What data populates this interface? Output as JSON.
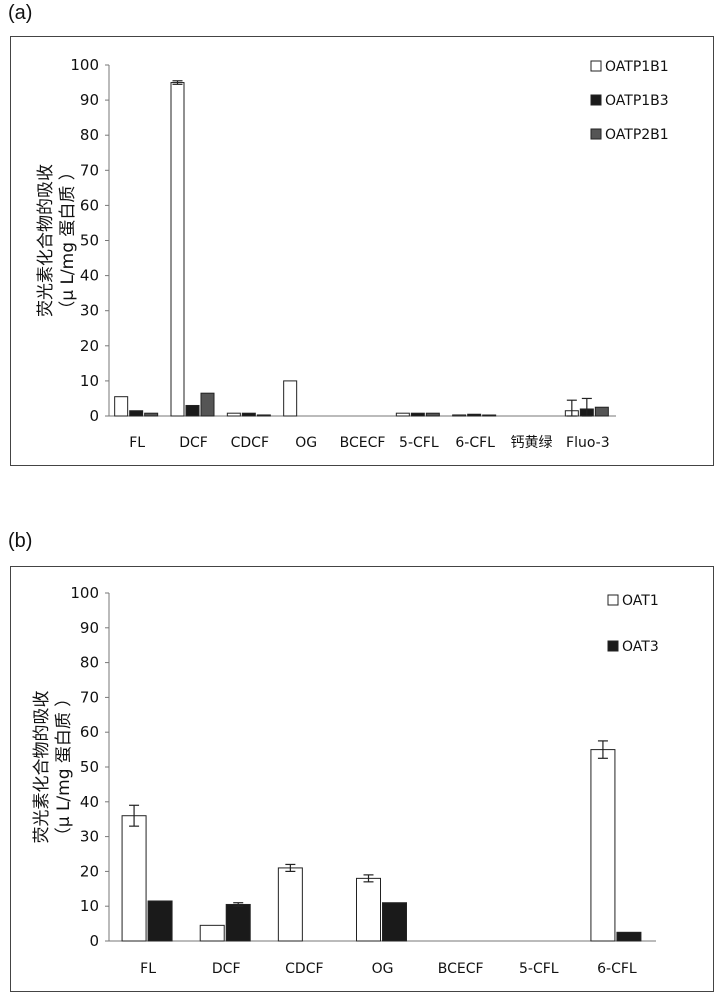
{
  "panels": {
    "a": {
      "label": "(a)"
    },
    "b": {
      "label": "(b)"
    }
  },
  "chart_data": [
    {
      "type": "bar",
      "id": "a",
      "ylabel_line1": "荧光素化合物的吸收",
      "ylabel_line2": "（μ L/mg 蛋白质 ）",
      "ylim": [
        0,
        100
      ],
      "yticks": [
        "0",
        "10",
        "20",
        "30",
        "40",
        "50",
        "60",
        "70",
        "80",
        "90",
        "100"
      ],
      "categories": [
        "FL",
        "DCF",
        "CDCF",
        "OG",
        "BCECF",
        "5-CFL",
        "6-CFL",
        "钙黄绿",
        "Fluo-3"
      ],
      "legend_position": "top-right",
      "grid": false,
      "series": [
        {
          "name": "OATP1B1",
          "fill": "#ffffff",
          "values": [
            5.5,
            95,
            0.8,
            10,
            0,
            0.8,
            0.3,
            0,
            1.5
          ],
          "errors": [
            0,
            0.5,
            0,
            0,
            0,
            0,
            0,
            0,
            3
          ]
        },
        {
          "name": "OATP1B3",
          "fill": "#1a1a1a",
          "values": [
            1.5,
            3,
            0.8,
            0,
            0,
            0.8,
            0.5,
            0,
            2
          ],
          "errors": [
            0,
            0,
            0,
            0,
            0,
            0,
            0,
            0,
            3
          ]
        },
        {
          "name": "OATP2B1",
          "fill": "#555555",
          "values": [
            0.8,
            6.5,
            0.3,
            0,
            0,
            0.8,
            0.2,
            0,
            2.5
          ],
          "errors": [
            0,
            0,
            0,
            0,
            0,
            0,
            0,
            0,
            0
          ]
        }
      ]
    },
    {
      "type": "bar",
      "id": "b",
      "ylabel_line1": "荧光素化合物的吸收",
      "ylabel_line2": "（μ L/mg 蛋白质 ）",
      "ylim": [
        0,
        100
      ],
      "yticks": [
        "0",
        "10",
        "20",
        "30",
        "40",
        "50",
        "60",
        "70",
        "80",
        "90",
        "100"
      ],
      "categories": [
        "FL",
        "DCF",
        "CDCF",
        "OG",
        "BCECF",
        "5-CFL",
        "6-CFL"
      ],
      "legend_position": "top-right",
      "grid": false,
      "series": [
        {
          "name": "OAT1",
          "fill": "#ffffff",
          "values": [
            36,
            4.5,
            21,
            18,
            0,
            0,
            55
          ],
          "errors": [
            3,
            0,
            1,
            1,
            0,
            0,
            2.5
          ]
        },
        {
          "name": "OAT3",
          "fill": "#1a1a1a",
          "values": [
            11.5,
            10.5,
            0,
            11,
            0,
            0,
            2.5
          ],
          "errors": [
            0,
            0.5,
            0,
            0,
            0,
            0,
            0
          ]
        }
      ]
    }
  ]
}
